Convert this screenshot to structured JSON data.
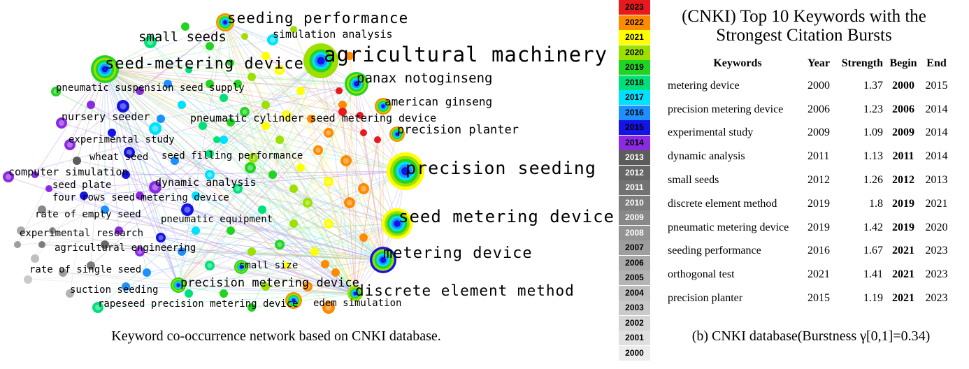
{
  "network": {
    "caption": "Keyword co-occurrence network based on CNKI database.",
    "labels": [
      {
        "text": "seeding performance",
        "size": 21
      },
      {
        "text": "small seeds",
        "size": 19
      },
      {
        "text": "simulation analysis",
        "size": 15
      },
      {
        "text": "agricultural machinery",
        "size": 29
      },
      {
        "text": "seed-metering device",
        "size": 22
      },
      {
        "text": "panax notoginseng",
        "size": 19
      },
      {
        "text": "pneumatic suspension seed supply",
        "size": 14
      },
      {
        "text": "american ginseng",
        "size": 16
      },
      {
        "text": "nursery seeder",
        "size": 15
      },
      {
        "text": "pneumatic cylinder seed metering device",
        "size": 15
      },
      {
        "text": "precision planter",
        "size": 17
      },
      {
        "text": "experimental study",
        "size": 14
      },
      {
        "text": "wheat seed",
        "size": 14
      },
      {
        "text": "seed filling performance",
        "size": 14
      },
      {
        "text": "precision seeding",
        "size": 25
      },
      {
        "text": "computer simulation",
        "size": 15
      },
      {
        "text": "dynamic analysis",
        "size": 15
      },
      {
        "text": "seed plate",
        "size": 14
      },
      {
        "text": "four rows seed-metering device",
        "size": 14
      },
      {
        "text": "rate of empty seed",
        "size": 14
      },
      {
        "text": "seed metering device",
        "size": 24
      },
      {
        "text": "pneumatic equipment",
        "size": 14
      },
      {
        "text": "experimental research",
        "size": 14
      },
      {
        "text": "agricultural engineering",
        "size": 14
      },
      {
        "text": "metering device",
        "size": 22
      },
      {
        "text": "small size",
        "size": 14
      },
      {
        "text": "rate of single seed",
        "size": 14
      },
      {
        "text": "precision metering device",
        "size": 17
      },
      {
        "text": "discrete element method",
        "size": 21
      },
      {
        "text": "suction seeding",
        "size": 14
      },
      {
        "text": "rapeseed precision metering device",
        "size": 14
      },
      {
        "text": "edem simulation",
        "size": 14
      }
    ]
  },
  "legend": {
    "years": [
      "2023",
      "2022",
      "2021",
      "2020",
      "2019",
      "2018",
      "2017",
      "2016",
      "2015",
      "2014",
      "2013",
      "2012",
      "2011",
      "2010",
      "2009",
      "2008",
      "2007",
      "2006",
      "2005",
      "2004",
      "2003",
      "2002",
      "2001",
      "2000"
    ],
    "colors": {
      "2023": "#e8191c",
      "2022": "#ff8a00",
      "2021": "#ffff00",
      "2020": "#9ce000",
      "2019": "#22d422",
      "2018": "#00e07a",
      "2017": "#00e1ff",
      "2016": "#1e8fff",
      "2015": "#1414e6",
      "2014": "#8a2be2",
      "2013": "#5c5c5c",
      "2012": "#676767",
      "2011": "#727272",
      "2010": "#7d7d7d",
      "2009": "#888888",
      "2008": "#939393",
      "2007": "#9e9e9e",
      "2006": "#a9a9a9",
      "2005": "#b4b4b4",
      "2004": "#bfbfbf",
      "2003": "#cacaca",
      "2002": "#d5d5d5",
      "2001": "#e0e0e0",
      "2000": "#ececec"
    }
  },
  "burst_table": {
    "title_line1": "(CNKI) Top 10 Keywords with the",
    "title_line2": "Strongest Citation Bursts",
    "headers": [
      "Keywords",
      "Year",
      "Strength",
      "Begin",
      "End"
    ],
    "rows": [
      [
        "metering device",
        "2000",
        "1.37",
        "2000",
        "2015"
      ],
      [
        "precision metering device",
        "2006",
        "1.23",
        "2006",
        "2014"
      ],
      [
        "experimental study",
        "2009",
        "1.09",
        "2009",
        "2014"
      ],
      [
        "dynamic analysis",
        "2011",
        "1.13",
        "2011",
        "2014"
      ],
      [
        "small seeds",
        "2012",
        "1.26",
        "2012",
        "2013"
      ],
      [
        "discrete element method",
        "2019",
        "1.8",
        "2019",
        "2021"
      ],
      [
        "pneumatic metering device",
        "2019",
        "1.42",
        "2019",
        "2020"
      ],
      [
        "seeding performance",
        "2016",
        "1.67",
        "2021",
        "2023"
      ],
      [
        "orthogonal test",
        "2021",
        "1.41",
        "2021",
        "2023"
      ],
      [
        "precision planter",
        "2015",
        "1.19",
        "2021",
        "2023"
      ]
    ],
    "caption": "(b) CNKI database(Burstness γ[0,1]=0.34)"
  }
}
